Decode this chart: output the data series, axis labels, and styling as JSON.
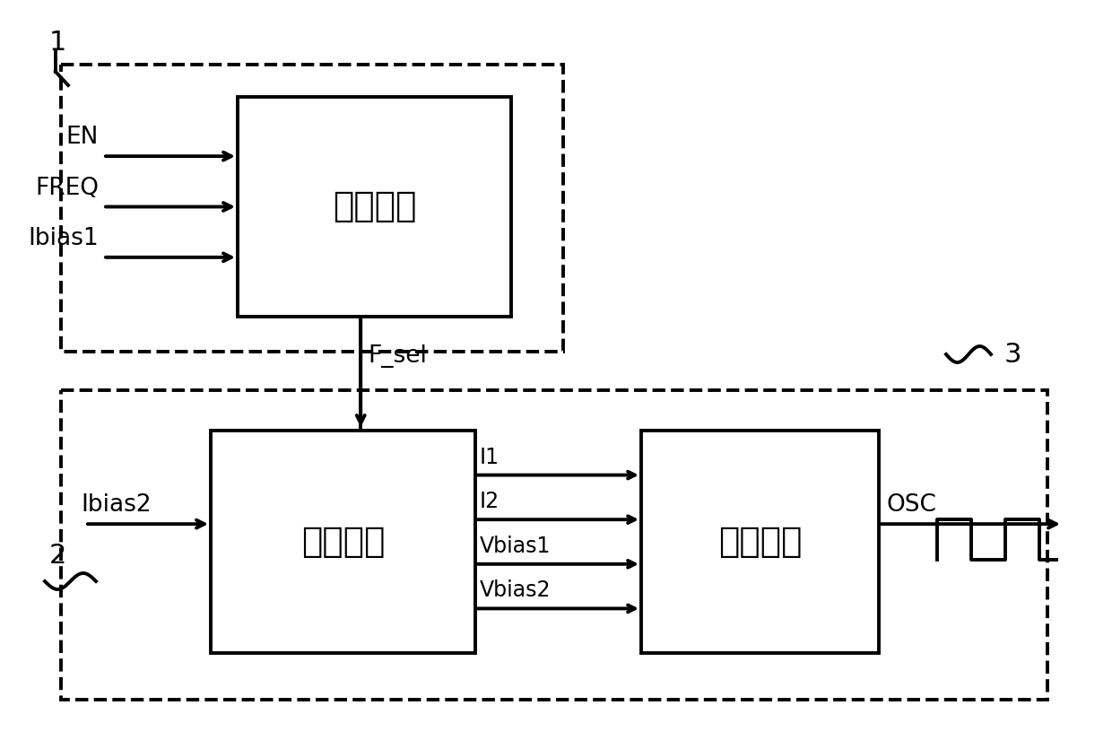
{
  "bg_color": "#ffffff",
  "line_color": "#000000",
  "box1_label": "频率选择",
  "box2_label": "偏置电流",
  "box3_label": "振荡电路",
  "input_labels_box1": [
    "EN",
    "FREQ",
    "Ibias1"
  ],
  "input_labels_box2": [
    "Ibias2"
  ],
  "output_labels_box2": [
    "I1",
    "I2",
    "Vbias1",
    "Vbias2"
  ],
  "output_label_box3": "OSC",
  "fsel_label": "F_sel",
  "label1": "1",
  "label2": "2",
  "label3": "3",
  "figsize": [
    12.4,
    8.35
  ],
  "dpi": 100
}
